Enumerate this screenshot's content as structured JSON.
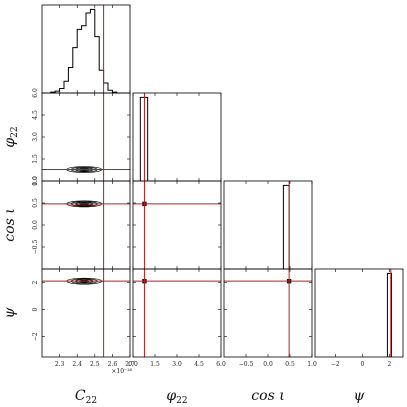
{
  "chart_data": {
    "type": "corner",
    "parameters": [
      {
        "key": "C22",
        "label_main": "C",
        "label_sub": "22",
        "range": [
          2.2,
          2.7
        ],
        "ticks": [
          2.3,
          2.4,
          2.5,
          2.6,
          2.7
        ],
        "tick_labels": [
          "2.3",
          "2.4",
          "2.5",
          "2.6",
          "2.7"
        ],
        "multiplier": "×10⁻²⁶"
      },
      {
        "key": "phi22",
        "label_main": "φ",
        "label_sub": "22",
        "range": [
          0,
          6.0
        ],
        "ticks": [
          0,
          1.5,
          3.0,
          4.5,
          6.0
        ],
        "tick_labels": [
          "0.0",
          "1.5",
          "3.0",
          "4.5",
          "6.0"
        ]
      },
      {
        "key": "cosiota",
        "label_main": "cos ι",
        "label_sub": "",
        "range": [
          -1.0,
          1.0
        ],
        "ticks": [
          -0.5,
          0.0,
          0.5,
          1.0
        ],
        "tick_labels": [
          "−0.5",
          "0.0",
          "0.5",
          "1.0"
        ]
      },
      {
        "key": "psi",
        "label_main": "ψ",
        "label_sub": "",
        "range": [
          -3.5,
          3.0
        ],
        "ticks": [
          -2,
          0,
          2
        ],
        "tick_labels": [
          "−2",
          "0",
          "2"
        ]
      }
    ],
    "truth": {
      "C22": 2.55,
      "phi22": 0.78,
      "cosiota": 0.48,
      "psi": 2.1
    },
    "hist_C22": {
      "bins": [
        2.2,
        2.225,
        2.25,
        2.275,
        2.3,
        2.325,
        2.35,
        2.375,
        2.4,
        2.425,
        2.45,
        2.475,
        2.5,
        2.525,
        2.55,
        2.575,
        2.6,
        2.625,
        2.65,
        2.675,
        2.7
      ],
      "counts": [
        0,
        0,
        0.01,
        0.02,
        0.05,
        0.13,
        0.28,
        0.5,
        0.7,
        0.74,
        0.88,
        0.92,
        0.62,
        0.25,
        0.11,
        0.03,
        0.01,
        0,
        0,
        0
      ]
    },
    "hist_phi22": {
      "bins": [
        0.5,
        0.75,
        1.0
      ],
      "counts": [
        1.0,
        1.0
      ]
    },
    "hist_cosiota": {
      "bins": [
        0.35,
        0.42,
        0.48
      ],
      "counts": [
        1.0,
        1.0
      ]
    },
    "hist_psi": {
      "bins": [
        1.85,
        2.0,
        2.15
      ],
      "counts": [
        1.0,
        1.0
      ]
    },
    "posterior_center": {
      "C22": 2.44,
      "phi22": 0.78,
      "cosiota": 0.48,
      "psi": 2.1
    },
    "posterior_halfwidth": {
      "C22": 0.1
    }
  }
}
